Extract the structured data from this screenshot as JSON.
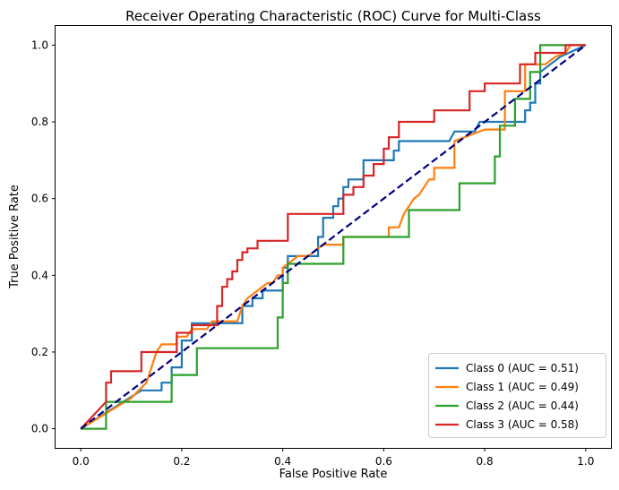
{
  "chart_data": {
    "type": "line",
    "title": "Receiver Operating Characteristic (ROC) Curve for Multi-Class",
    "xlabel": "False Positive Rate",
    "ylabel": "True Positive Rate",
    "xlim": [
      -0.05,
      1.05
    ],
    "ylim": [
      -0.05,
      1.05
    ],
    "xticks": [
      "0.0",
      "0.2",
      "0.4",
      "0.6",
      "0.8",
      "1.0"
    ],
    "yticks": [
      "0.0",
      "0.2",
      "0.4",
      "0.6",
      "0.8",
      "1.0"
    ],
    "grid": false,
    "legend_position": "lower-right",
    "series": [
      {
        "name": "Class 0 (AUC = 0.51)",
        "color": "#1f77b4",
        "points": [
          [
            0,
            0
          ],
          [
            0.12,
            0.1
          ],
          [
            0.16,
            0.1
          ],
          [
            0.16,
            0.12
          ],
          [
            0.18,
            0.12
          ],
          [
            0.18,
            0.16
          ],
          [
            0.2,
            0.16
          ],
          [
            0.2,
            0.23
          ],
          [
            0.22,
            0.23
          ],
          [
            0.22,
            0.275
          ],
          [
            0.32,
            0.275
          ],
          [
            0.32,
            0.32
          ],
          [
            0.34,
            0.32
          ],
          [
            0.34,
            0.34
          ],
          [
            0.36,
            0.34
          ],
          [
            0.36,
            0.36
          ],
          [
            0.4,
            0.36
          ],
          [
            0.4,
            0.42
          ],
          [
            0.41,
            0.42
          ],
          [
            0.41,
            0.45
          ],
          [
            0.47,
            0.45
          ],
          [
            0.47,
            0.5
          ],
          [
            0.48,
            0.5
          ],
          [
            0.48,
            0.55
          ],
          [
            0.5,
            0.55
          ],
          [
            0.5,
            0.58
          ],
          [
            0.51,
            0.58
          ],
          [
            0.51,
            0.6
          ],
          [
            0.52,
            0.6
          ],
          [
            0.52,
            0.63
          ],
          [
            0.53,
            0.63
          ],
          [
            0.53,
            0.65
          ],
          [
            0.56,
            0.65
          ],
          [
            0.56,
            0.7
          ],
          [
            0.62,
            0.7
          ],
          [
            0.62,
            0.725
          ],
          [
            0.63,
            0.725
          ],
          [
            0.63,
            0.75
          ],
          [
            0.73,
            0.75
          ],
          [
            0.74,
            0.775
          ],
          [
            0.78,
            0.775
          ],
          [
            0.79,
            0.8
          ],
          [
            0.88,
            0.8
          ],
          [
            0.88,
            0.83
          ],
          [
            0.89,
            0.83
          ],
          [
            0.89,
            0.85
          ],
          [
            0.9,
            0.85
          ],
          [
            0.9,
            0.9
          ],
          [
            0.91,
            0.9
          ],
          [
            0.91,
            0.93
          ],
          [
            0.95,
            0.97
          ],
          [
            1.0,
            1.0
          ]
        ]
      },
      {
        "name": "Class 1 (AUC = 0.49)",
        "color": "#ff7f0e",
        "points": [
          [
            0,
            0
          ],
          [
            0.1,
            0.08
          ],
          [
            0.13,
            0.12
          ],
          [
            0.14,
            0.16
          ],
          [
            0.15,
            0.2
          ],
          [
            0.16,
            0.22
          ],
          [
            0.19,
            0.22
          ],
          [
            0.19,
            0.24
          ],
          [
            0.21,
            0.24
          ],
          [
            0.22,
            0.26
          ],
          [
            0.25,
            0.26
          ],
          [
            0.26,
            0.28
          ],
          [
            0.31,
            0.28
          ],
          [
            0.32,
            0.32
          ],
          [
            0.33,
            0.34
          ],
          [
            0.35,
            0.36
          ],
          [
            0.37,
            0.38
          ],
          [
            0.38,
            0.38
          ],
          [
            0.39,
            0.4
          ],
          [
            0.4,
            0.4
          ],
          [
            0.4,
            0.42
          ],
          [
            0.42,
            0.44
          ],
          [
            0.43,
            0.45
          ],
          [
            0.45,
            0.45
          ],
          [
            0.46,
            0.46
          ],
          [
            0.48,
            0.48
          ],
          [
            0.52,
            0.48
          ],
          [
            0.52,
            0.5
          ],
          [
            0.61,
            0.5
          ],
          [
            0.61,
            0.525
          ],
          [
            0.63,
            0.525
          ],
          [
            0.64,
            0.56
          ],
          [
            0.65,
            0.58
          ],
          [
            0.66,
            0.6
          ],
          [
            0.67,
            0.61
          ],
          [
            0.68,
            0.63
          ],
          [
            0.69,
            0.65
          ],
          [
            0.7,
            0.65
          ],
          [
            0.7,
            0.68
          ],
          [
            0.74,
            0.68
          ],
          [
            0.74,
            0.75
          ],
          [
            0.8,
            0.78
          ],
          [
            0.84,
            0.78
          ],
          [
            0.84,
            0.88
          ],
          [
            0.86,
            0.88
          ],
          [
            0.88,
            0.88
          ],
          [
            0.88,
            0.95
          ],
          [
            0.92,
            0.95
          ],
          [
            0.94,
            0.97
          ],
          [
            0.96,
            0.98
          ],
          [
            0.97,
            1.0
          ],
          [
            1.0,
            1.0
          ]
        ]
      },
      {
        "name": "Class 2 (AUC = 0.44)",
        "color": "#2ca02c",
        "points": [
          [
            0,
            0
          ],
          [
            0.05,
            0
          ],
          [
            0.05,
            0.07
          ],
          [
            0.18,
            0.07
          ],
          [
            0.18,
            0.14
          ],
          [
            0.23,
            0.14
          ],
          [
            0.23,
            0.21
          ],
          [
            0.39,
            0.21
          ],
          [
            0.39,
            0.29
          ],
          [
            0.4,
            0.29
          ],
          [
            0.4,
            0.38
          ],
          [
            0.41,
            0.38
          ],
          [
            0.41,
            0.43
          ],
          [
            0.52,
            0.43
          ],
          [
            0.52,
            0.5
          ],
          [
            0.65,
            0.5
          ],
          [
            0.65,
            0.57
          ],
          [
            0.75,
            0.57
          ],
          [
            0.75,
            0.64
          ],
          [
            0.82,
            0.64
          ],
          [
            0.82,
            0.71
          ],
          [
            0.83,
            0.71
          ],
          [
            0.83,
            0.79
          ],
          [
            0.86,
            0.79
          ],
          [
            0.86,
            0.86
          ],
          [
            0.89,
            0.86
          ],
          [
            0.89,
            0.93
          ],
          [
            0.91,
            0.93
          ],
          [
            0.91,
            1.0
          ],
          [
            1.0,
            1.0
          ]
        ]
      },
      {
        "name": "Class 3 (AUC = 0.58)",
        "color": "#d62728",
        "points": [
          [
            0,
            0
          ],
          [
            0.05,
            0.07
          ],
          [
            0.05,
            0.12
          ],
          [
            0.06,
            0.12
          ],
          [
            0.06,
            0.15
          ],
          [
            0.12,
            0.15
          ],
          [
            0.12,
            0.2
          ],
          [
            0.19,
            0.2
          ],
          [
            0.19,
            0.25
          ],
          [
            0.22,
            0.25
          ],
          [
            0.22,
            0.27
          ],
          [
            0.27,
            0.27
          ],
          [
            0.27,
            0.32
          ],
          [
            0.28,
            0.32
          ],
          [
            0.28,
            0.37
          ],
          [
            0.29,
            0.37
          ],
          [
            0.29,
            0.39
          ],
          [
            0.3,
            0.39
          ],
          [
            0.3,
            0.41
          ],
          [
            0.31,
            0.41
          ],
          [
            0.31,
            0.44
          ],
          [
            0.32,
            0.44
          ],
          [
            0.32,
            0.46
          ],
          [
            0.33,
            0.46
          ],
          [
            0.33,
            0.47
          ],
          [
            0.35,
            0.47
          ],
          [
            0.35,
            0.49
          ],
          [
            0.41,
            0.49
          ],
          [
            0.41,
            0.56
          ],
          [
            0.52,
            0.56
          ],
          [
            0.52,
            0.61
          ],
          [
            0.54,
            0.61
          ],
          [
            0.54,
            0.63
          ],
          [
            0.56,
            0.63
          ],
          [
            0.56,
            0.66
          ],
          [
            0.58,
            0.66
          ],
          [
            0.58,
            0.69
          ],
          [
            0.6,
            0.69
          ],
          [
            0.6,
            0.73
          ],
          [
            0.61,
            0.73
          ],
          [
            0.61,
            0.76
          ],
          [
            0.63,
            0.76
          ],
          [
            0.63,
            0.8
          ],
          [
            0.7,
            0.8
          ],
          [
            0.7,
            0.83
          ],
          [
            0.77,
            0.83
          ],
          [
            0.77,
            0.88
          ],
          [
            0.8,
            0.88
          ],
          [
            0.8,
            0.9
          ],
          [
            0.87,
            0.9
          ],
          [
            0.87,
            0.95
          ],
          [
            0.9,
            0.95
          ],
          [
            0.9,
            0.98
          ],
          [
            0.96,
            0.98
          ],
          [
            0.96,
            1.0
          ],
          [
            1.0,
            1.0
          ]
        ]
      }
    ],
    "reference_line": {
      "color": "#000080",
      "style": "dashed",
      "points": [
        [
          0,
          0
        ],
        [
          1,
          1
        ]
      ]
    }
  }
}
